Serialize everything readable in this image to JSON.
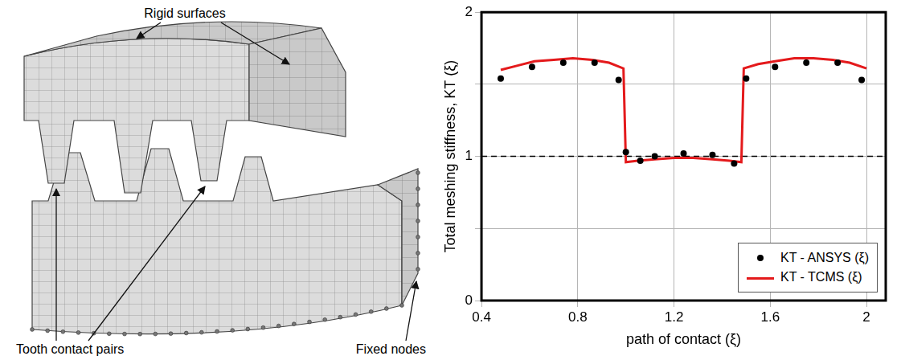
{
  "diagram": {
    "labels": {
      "rigid_surfaces": "Rigid surfaces",
      "tooth_contact_pairs": "Tooth contact pairs",
      "fixed_nodes": "Fixed nodes"
    }
  },
  "chart_data": {
    "type": "line",
    "x_label": "path of contact (ξ)",
    "y_label": "Total meshing stiffness, KT (ξ)",
    "xlim": [
      0.4,
      2.08
    ],
    "xticks": [
      0.4,
      0.8,
      1.2,
      1.6,
      2
    ],
    "ylim": [
      0,
      2
    ],
    "yticks": [
      0,
      1,
      2
    ],
    "grid": true,
    "legend": "lower right",
    "series": [
      {
        "name": "KT - ANSYS (ξ)",
        "type": "scatter",
        "marker": "circle",
        "color": "#000000",
        "x": [
          0.48,
          0.61,
          0.74,
          0.87,
          0.97,
          1.0,
          1.06,
          1.12,
          1.24,
          1.36,
          1.45,
          1.5,
          1.62,
          1.75,
          1.88,
          1.98
        ],
        "values": [
          1.54,
          1.62,
          1.65,
          1.65,
          1.53,
          1.03,
          0.97,
          1.0,
          1.02,
          1.01,
          0.95,
          1.54,
          1.62,
          1.65,
          1.65,
          1.53
        ]
      },
      {
        "name": "KT - TCMS (ξ)",
        "type": "line",
        "line_style": "solid",
        "color": "#e41a1c",
        "x": [
          0.48,
          0.55,
          0.62,
          0.7,
          0.78,
          0.86,
          0.93,
          0.99,
          1.0,
          1.05,
          1.12,
          1.2,
          1.28,
          1.36,
          1.43,
          1.48,
          1.49,
          1.55,
          1.62,
          1.7,
          1.78,
          1.86,
          1.93,
          2.0
        ],
        "values": [
          1.6,
          1.63,
          1.66,
          1.67,
          1.68,
          1.67,
          1.65,
          1.61,
          0.96,
          0.97,
          0.98,
          0.99,
          0.99,
          0.98,
          0.97,
          0.96,
          1.61,
          1.64,
          1.66,
          1.68,
          1.68,
          1.67,
          1.65,
          1.61
        ]
      }
    ],
    "reference_line": {
      "y": 1,
      "line_style": "dashed",
      "color": "#000000"
    }
  }
}
